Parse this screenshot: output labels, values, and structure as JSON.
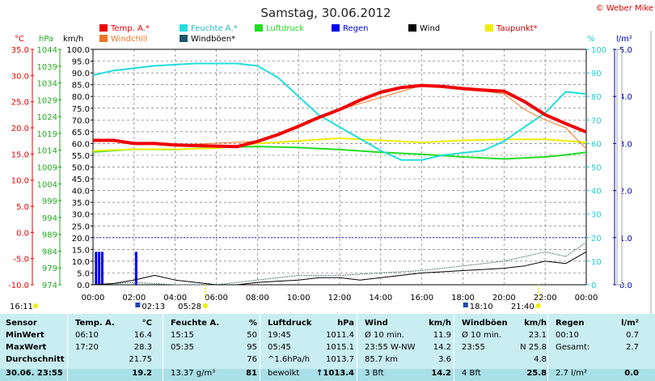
{
  "header": {
    "title": "Samstag, 30.06.2012",
    "copyright": "© Weber Mike",
    "legend": [
      {
        "label": "Temp. A.*",
        "color": "#ee0000"
      },
      {
        "label": "Feuchte A.*",
        "color": "#22dddd"
      },
      {
        "label": "Luftdruck",
        "color": "#22dd22"
      },
      {
        "label": "Regen",
        "color": "#0000ee"
      },
      {
        "label": "Wind",
        "color": "#000000"
      },
      {
        "label": "Taupunkt*",
        "color": "#eeee00"
      },
      {
        "label": "Windchill",
        "color": "#ee7722"
      },
      {
        "label": "Windböen*",
        "color": "#225566"
      }
    ]
  },
  "chart_data": {
    "type": "line",
    "axes": {
      "temp": {
        "unit": "°C",
        "range": [
          -10,
          35
        ],
        "ticks": [
          "35.0",
          "30.0",
          "25.0",
          "20.0",
          "15.0",
          "10.0",
          "5.0",
          "0.0",
          "-5.0",
          "-10.0"
        ]
      },
      "pressure": {
        "unit": "hPa",
        "range": [
          974,
          1044
        ],
        "ticks": [
          "1044",
          "1039",
          "1034",
          "1029",
          "1024",
          "1019",
          "1014",
          "1009",
          "1004",
          "999",
          "994",
          "989",
          "984",
          "979",
          "974"
        ]
      },
      "wind": {
        "unit": "km/h",
        "range": [
          0,
          100
        ],
        "ticks": [
          "100.0",
          "95.0",
          "90.0",
          "85.0",
          "80.0",
          "75.0",
          "70.0",
          "65.0",
          "60.0",
          "55.0",
          "50.0",
          "45.0",
          "40.0",
          "35.0",
          "30.0",
          "25.0",
          "20.0",
          "15.0",
          "10.0",
          "5.0",
          "0.0"
        ]
      },
      "humidity": {
        "unit": "%",
        "range": [
          0,
          100
        ],
        "ticks": [
          "100",
          "90",
          "80",
          "70",
          "60",
          "50",
          "40",
          "30",
          "20",
          "10",
          "0"
        ]
      },
      "rain": {
        "unit": "l/m²",
        "range": [
          0,
          5
        ],
        "ticks": [
          "5.0",
          "4.0",
          "3.0",
          "2.0",
          "1.0",
          "0.0"
        ]
      },
      "x": {
        "range": [
          0,
          24
        ],
        "ticks": [
          "00:00",
          "02:00",
          "04:00",
          "06:00",
          "08:00",
          "10:00",
          "12:00",
          "14:00",
          "16:00",
          "18:00",
          "20:00",
          "22:00",
          "00:00"
        ]
      }
    },
    "series": [
      {
        "name": "Temp. A.*",
        "axis": "temp",
        "x": [
          0,
          1,
          2,
          3,
          4,
          5,
          6,
          7,
          8,
          9,
          10,
          11,
          12,
          13,
          14,
          15,
          16,
          17,
          18,
          19,
          20,
          21,
          22,
          23,
          24
        ],
        "values": [
          17.6,
          17.6,
          17.0,
          17.0,
          16.7,
          16.6,
          16.5,
          16.4,
          17.4,
          18.7,
          20.3,
          22.0,
          23.5,
          25.3,
          26.8,
          27.7,
          28.1,
          27.9,
          27.5,
          27.2,
          27.0,
          25.0,
          22.5,
          20.8,
          19.2
        ]
      },
      {
        "name": "Feuchte A.*",
        "axis": "humidity",
        "x": [
          0,
          1,
          2,
          3,
          4,
          5,
          6,
          7,
          8,
          9,
          10,
          11,
          12,
          13,
          14,
          15,
          16,
          17,
          18,
          19,
          20,
          21,
          22,
          23,
          24
        ],
        "values": [
          89,
          91,
          92,
          93,
          93.5,
          94,
          94,
          94,
          93,
          88,
          80,
          72,
          67,
          62,
          57,
          53,
          53,
          55,
          56,
          57,
          61,
          67,
          73,
          82,
          81
        ]
      },
      {
        "name": "Luftdruck",
        "axis": "pressure",
        "x": [
          0,
          2,
          4,
          6,
          8,
          10,
          12,
          14,
          16,
          18,
          20,
          22,
          23,
          24
        ],
        "values": [
          1013.5,
          1014.3,
          1014.2,
          1014.8,
          1015.1,
          1014.8,
          1014.2,
          1013.4,
          1012.8,
          1012.0,
          1011.4,
          1012.0,
          1012.6,
          1013.4
        ]
      },
      {
        "name": "Taupunkt*",
        "axis": "temp",
        "x": [
          0,
          2,
          4,
          6,
          8,
          10,
          12,
          14,
          16,
          18,
          20,
          22,
          24
        ],
        "values": [
          15.6,
          15.9,
          15.9,
          16.1,
          17.0,
          17.5,
          18.0,
          17.6,
          17.2,
          17.6,
          17.8,
          17.8,
          17.2
        ]
      },
      {
        "name": "Windchill",
        "axis": "temp",
        "x": [
          0,
          4,
          8,
          12,
          16,
          18,
          20,
          21,
          22,
          23,
          24
        ],
        "values": [
          17.6,
          16.7,
          17.4,
          23.5,
          28.1,
          27.5,
          26.5,
          23.5,
          21.5,
          20.0,
          16.0
        ]
      },
      {
        "name": "Wind",
        "axis": "wind",
        "x": [
          0,
          1,
          2,
          3,
          4,
          5,
          6,
          7,
          8,
          9,
          10,
          11,
          12,
          13,
          14,
          15,
          16,
          17,
          18,
          19,
          20,
          21,
          22,
          23,
          24
        ],
        "values": [
          0,
          0.5,
          2,
          4,
          2,
          1,
          0,
          0,
          1,
          1.5,
          2,
          3,
          3,
          2,
          3,
          4,
          5,
          5.5,
          6,
          6.5,
          7,
          8,
          10,
          9,
          14
        ]
      },
      {
        "name": "Windböen*",
        "axis": "wind",
        "x": [
          0,
          2,
          4,
          6,
          8,
          10,
          12,
          14,
          16,
          18,
          20,
          22,
          23,
          24
        ],
        "values": [
          0,
          1,
          0,
          0,
          2,
          4,
          4,
          5,
          6,
          8,
          10,
          14,
          12,
          18
        ]
      },
      {
        "name": "Regen",
        "axis": "rain",
        "x": [
          0.15,
          0.3,
          0.45,
          2.1
        ],
        "values": [
          0.7,
          0.7,
          0.7,
          0.7
        ],
        "type": "bar"
      }
    ],
    "grid": true
  },
  "markers": {
    "sunrise": "05:28",
    "sunset": "21:40",
    "moonrise": "02:13",
    "moonset": "18:10",
    "left_time": "16:11"
  },
  "stats": {
    "sensor": {
      "header": "Sensor",
      "rows": [
        "MinWert",
        "MaxWert",
        "Durchschnitt",
        "30.06. 23:55"
      ]
    },
    "temp": {
      "header": "Temp. A.",
      "unit": "°C",
      "rows": [
        [
          "06:10",
          "16.4"
        ],
        [
          "17:20",
          "28.3"
        ],
        [
          "",
          "21.75"
        ],
        [
          "",
          "19.2"
        ]
      ]
    },
    "hum": {
      "header": "Feuchte A.",
      "unit": "%",
      "rows": [
        [
          "15:15",
          "50"
        ],
        [
          "05:35",
          "95"
        ],
        [
          "",
          "76"
        ],
        [
          "13.37 g/m³",
          "81"
        ]
      ]
    },
    "press": {
      "header": "Luftdruck",
      "unit": "hPa",
      "rows": [
        [
          "19:45",
          "1011.4"
        ],
        [
          "05:45",
          "1015.1"
        ],
        [
          "^1.6hPa/h",
          "1013.7"
        ],
        [
          "bewolkt",
          "↑1013.4"
        ]
      ]
    },
    "wind": {
      "header": "Wind",
      "unit": "km/h",
      "rows": [
        [
          "Ø 10 min.",
          "11.9"
        ],
        [
          "23:55  W-NW",
          "14.2"
        ],
        [
          "85.7 km",
          "3.6"
        ],
        [
          "3 Bft",
          "14.2"
        ]
      ]
    },
    "gust": {
      "header": "Windböen",
      "unit": "km/h",
      "rows": [
        [
          "Ø 10 min.",
          "23.1"
        ],
        [
          "23:55",
          "N 25.8"
        ],
        [
          "",
          "4.8"
        ],
        [
          "4 Bft",
          "25.8"
        ]
      ]
    },
    "rain": {
      "header": "Regen",
      "unit": "l/m²",
      "rows": [
        [
          "00:10",
          "0.7"
        ],
        [
          "Gesamt:",
          "2.7"
        ],
        [
          "2.7 l/m²",
          "0.0"
        ]
      ]
    }
  }
}
